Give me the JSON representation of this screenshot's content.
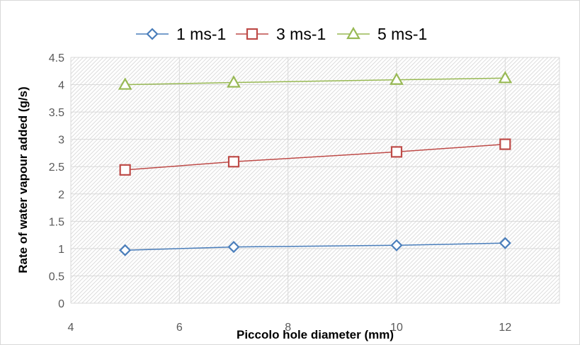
{
  "chart_data": {
    "type": "line",
    "x": [
      5,
      7,
      10,
      12
    ],
    "series": [
      {
        "name": "1 ms-1",
        "values": [
          0.97,
          1.03,
          1.06,
          1.1
        ],
        "color": "#4a7ebb",
        "marker": "diamond"
      },
      {
        "name": "3 ms-1",
        "values": [
          2.44,
          2.59,
          2.77,
          2.91
        ],
        "color": "#be4b48",
        "marker": "square"
      },
      {
        "name": "5 ms-1",
        "values": [
          4.0,
          4.04,
          4.09,
          4.12
        ],
        "color": "#98b954",
        "marker": "triangle"
      }
    ],
    "xlabel": "Piccolo hole diameter (mm)",
    "ylabel": "Rate of water vapour added (g/s)",
    "xlim": [
      4,
      13
    ],
    "ylim": [
      0,
      4.5
    ],
    "x_ticks": [
      "4",
      "6",
      "8",
      "10",
      "12"
    ],
    "y_ticks": [
      "0",
      "0.5",
      "1",
      "1.5",
      "2",
      "2.5",
      "3",
      "3.5",
      "4",
      "4.5"
    ],
    "grid": true,
    "legend_position": "top"
  }
}
